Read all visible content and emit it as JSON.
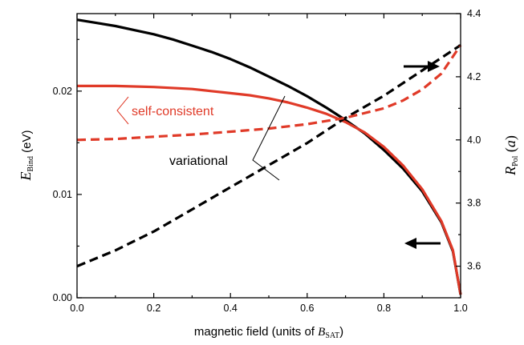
{
  "chart_data": {
    "type": "line",
    "xlabel": {
      "prefix": "magnetic field (units of ",
      "var": "B",
      "sub": "SAT",
      "suffix": ")"
    },
    "ylabel_left": {
      "var": "E",
      "sub": "Bind",
      "suffix": " (eV)"
    },
    "ylabel_right": {
      "var": "R",
      "sub": "Pol",
      "suffix_var": "a"
    },
    "xlim": [
      0,
      1
    ],
    "ylim_left": [
      0,
      0.0275
    ],
    "ylim_right": [
      3.5,
      4.4
    ],
    "x_ticks": [
      "0.0",
      "0.2",
      "0.4",
      "0.6",
      "0.8",
      "1.0"
    ],
    "y_left_ticks": [
      "0.00",
      "0.01",
      "0.02"
    ],
    "y_right_ticks": [
      "3.6",
      "3.8",
      "4.0",
      "4.2",
      "4.4"
    ],
    "grid": false,
    "annotations": {
      "self_consistent": "self-consistent",
      "variational": "variational"
    },
    "colors": {
      "self_consistent": "#e03a28",
      "variational": "#000000"
    },
    "series": [
      {
        "method": "variational",
        "quantity": "E_Bind",
        "axis": "left",
        "style": "solid",
        "x": [
          0,
          0.05,
          0.1,
          0.15,
          0.2,
          0.25,
          0.3,
          0.35,
          0.4,
          0.45,
          0.5,
          0.55,
          0.6,
          0.65,
          0.7,
          0.75,
          0.8,
          0.85,
          0.9,
          0.95,
          0.98,
          1.0
        ],
        "y": [
          0.0269,
          0.0266,
          0.0263,
          0.0259,
          0.0255,
          0.025,
          0.0244,
          0.0238,
          0.0231,
          0.0223,
          0.0214,
          0.0205,
          0.0195,
          0.0184,
          0.0172,
          0.0159,
          0.0143,
          0.0125,
          0.0103,
          0.0073,
          0.0045,
          0.0003
        ]
      },
      {
        "method": "self-consistent",
        "quantity": "E_Bind",
        "axis": "left",
        "style": "solid",
        "x": [
          0,
          0.1,
          0.2,
          0.3,
          0.35,
          0.4,
          0.45,
          0.5,
          0.55,
          0.6,
          0.65,
          0.7,
          0.75,
          0.8,
          0.85,
          0.9,
          0.95,
          0.98,
          1.0
        ],
        "y": [
          0.0205,
          0.0205,
          0.0204,
          0.0202,
          0.02,
          0.0198,
          0.0196,
          0.0193,
          0.0189,
          0.0184,
          0.0178,
          0.017,
          0.016,
          0.0146,
          0.0128,
          0.0105,
          0.0074,
          0.0046,
          0.0003
        ]
      },
      {
        "method": "variational",
        "quantity": "R_Pol",
        "axis": "right",
        "style": "dashed",
        "x": [
          0,
          0.1,
          0.2,
          0.3,
          0.4,
          0.5,
          0.6,
          0.7,
          0.8,
          0.9,
          1.0
        ],
        "y": [
          3.6,
          3.65,
          3.71,
          3.78,
          3.85,
          3.92,
          3.99,
          4.07,
          4.14,
          4.22,
          4.3
        ]
      },
      {
        "method": "self-consistent",
        "quantity": "R_Pol",
        "axis": "right",
        "style": "dashed",
        "x": [
          0,
          0.1,
          0.2,
          0.3,
          0.4,
          0.5,
          0.6,
          0.7,
          0.8,
          0.85,
          0.9,
          0.95,
          1.0
        ],
        "y": [
          4.0,
          4.003,
          4.01,
          4.017,
          4.026,
          4.036,
          4.05,
          4.07,
          4.1,
          4.125,
          4.16,
          4.21,
          4.3
        ]
      }
    ]
  }
}
